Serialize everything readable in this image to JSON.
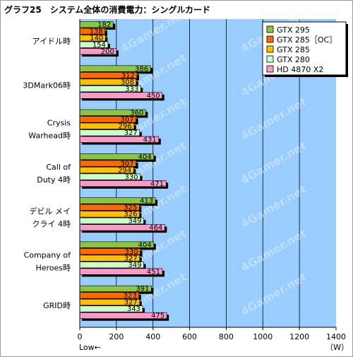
{
  "chart_data": {
    "type": "bar",
    "orientation": "horizontal",
    "title": "グラフ25　システム全体の消費電力：シングルカード",
    "xlabel_left": "Low←",
    "unit": "（W）",
    "xlim": [
      0,
      1400
    ],
    "xticks": [
      0,
      200,
      400,
      600,
      800,
      1000,
      1200,
      1400
    ],
    "grid": true,
    "legend_position": "top-right",
    "categories": [
      [
        "アイドル時"
      ],
      [
        "3DMark06時"
      ],
      [
        "Crysis",
        "Warhead時"
      ],
      [
        "Call of",
        "Duty 4時"
      ],
      [
        "デビル メイ",
        "クライ 4時"
      ],
      [
        "Company of",
        "Heroes時"
      ],
      [
        "GRID時"
      ]
    ],
    "series": [
      {
        "name": "GTX 295",
        "color": "#8cc63f",
        "values": [
          182,
          386,
          360,
          404,
          413,
          404,
          391
        ]
      },
      {
        "name": "GTX 285［OC］",
        "color": "#ff6a00",
        "values": [
          138,
          312,
          307,
          307,
          325,
          330,
          323
        ]
      },
      {
        "name": "GTX 285",
        "color": "#ffc000",
        "values": [
          140,
          308,
          296,
          294,
          326,
          327,
          327
        ]
      },
      {
        "name": "GTX 280",
        "color": "#ccffcc",
        "values": [
          154,
          333,
          327,
          330,
          349,
          349,
          343
        ]
      },
      {
        "name": "HD 4870 X2",
        "color": "#ff99cc",
        "values": [
          200,
          450,
          431,
          471,
          464,
          451,
          475
        ]
      }
    ],
    "watermark": "4Gamer.net"
  }
}
